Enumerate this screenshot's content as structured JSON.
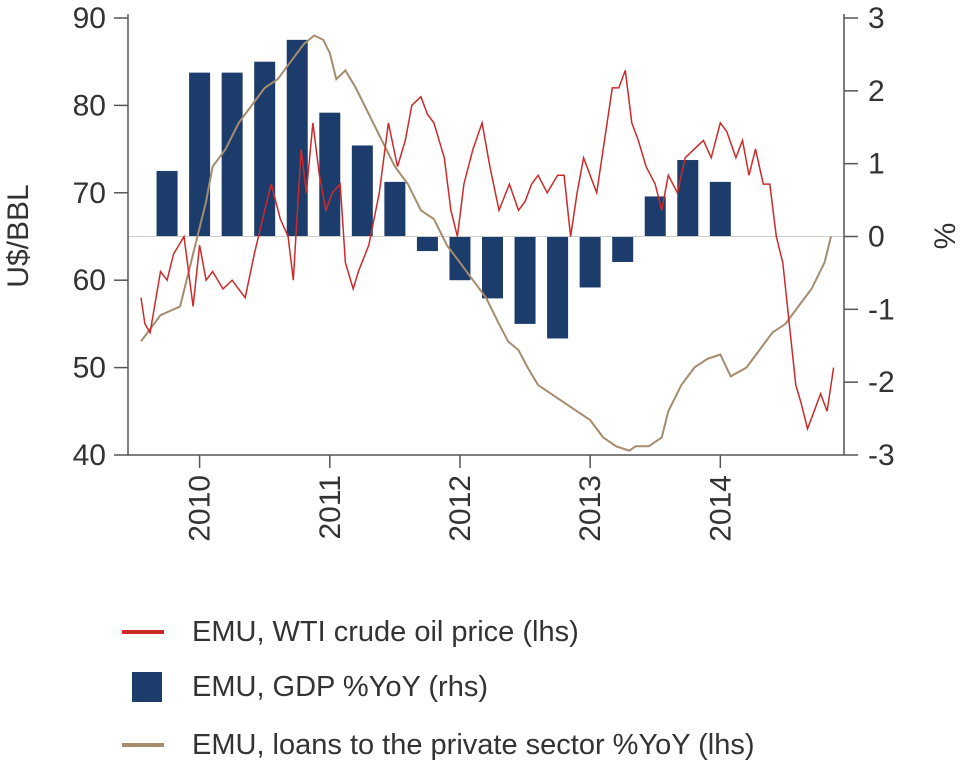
{
  "chart_data": {
    "type": "combo",
    "left_axis": {
      "label": "U$/BBL",
      "min": 40,
      "max": 90,
      "ticks": [
        40,
        50,
        60,
        70,
        80,
        90
      ]
    },
    "right_axis": {
      "label": "%",
      "min": -3,
      "max": 3,
      "ticks": [
        3,
        2,
        1,
        0,
        -1,
        -2,
        -3
      ]
    },
    "x_ticks": [
      "2010",
      "2011",
      "2012",
      "2013",
      "2014"
    ],
    "colors": {
      "oil": "#cc2a2a",
      "gdp": "#1c3d6b",
      "loans": "#a68c6e"
    },
    "series": [
      {
        "name": "EMU, WTI crude oil price (lhs)",
        "axis": "left",
        "style": "line",
        "x": [
          2009.55,
          2009.58,
          2009.62,
          2009.7,
          2009.75,
          2009.8,
          2009.88,
          2009.95,
          2010.0,
          2010.05,
          2010.1,
          2010.18,
          2010.25,
          2010.35,
          2010.42,
          2010.5,
          2010.55,
          2010.62,
          2010.68,
          2010.72,
          2010.78,
          2010.82,
          2010.87,
          2010.92,
          2010.97,
          2011.02,
          2011.08,
          2011.12,
          2011.18,
          2011.22,
          2011.3,
          2011.38,
          2011.45,
          2011.52,
          2011.58,
          2011.63,
          2011.7,
          2011.75,
          2011.8,
          2011.88,
          2011.93,
          2011.98,
          2012.03,
          2012.1,
          2012.17,
          2012.23,
          2012.3,
          2012.38,
          2012.45,
          2012.5,
          2012.55,
          2012.6,
          2012.67,
          2012.75,
          2012.8,
          2012.85,
          2012.9,
          2012.95,
          2013.0,
          2013.05,
          2013.1,
          2013.17,
          2013.22,
          2013.27,
          2013.32,
          2013.37,
          2013.43,
          2013.5,
          2013.55,
          2013.6,
          2013.67,
          2013.73,
          2013.8,
          2013.87,
          2013.93,
          2014.0,
          2014.05,
          2014.12,
          2014.17,
          2014.22,
          2014.27,
          2014.33,
          2014.38,
          2014.43,
          2014.48,
          2014.53,
          2014.58,
          2014.62,
          2014.67,
          2014.72,
          2014.77,
          2014.82,
          2014.87
        ],
        "values": [
          58,
          55,
          54,
          61,
          60,
          63,
          65,
          57,
          64,
          60,
          61,
          59,
          60,
          58,
          63,
          68,
          71,
          67,
          65,
          60,
          75,
          70,
          78,
          72,
          68,
          70,
          71,
          62,
          59,
          61,
          64,
          70,
          78,
          73,
          76,
          80,
          81,
          79,
          78,
          74,
          68,
          65,
          71,
          75,
          78,
          73,
          68,
          71,
          68,
          69,
          71,
          72,
          70,
          72,
          72,
          65,
          70,
          74,
          72,
          70,
          75,
          82,
          82,
          84,
          78,
          76,
          73,
          71,
          68,
          72,
          70,
          74,
          75,
          76,
          74,
          78,
          77,
          74,
          76,
          72,
          75,
          71,
          71,
          65,
          62,
          55,
          48,
          46,
          43,
          45,
          47,
          45,
          50
        ]
      },
      {
        "name": "EMU, GDP %YoY (rhs)",
        "axis": "right",
        "style": "bar",
        "x": [
          2009.75,
          2010.0,
          2010.25,
          2010.5,
          2010.75,
          2011.0,
          2011.25,
          2011.5,
          2011.75,
          2012.0,
          2012.25,
          2012.5,
          2012.75,
          2013.0,
          2013.25,
          2013.5,
          2013.75,
          2014.0
        ],
        "values": [
          0.9,
          2.25,
          2.25,
          2.4,
          2.7,
          1.7,
          1.25,
          0.75,
          -0.2,
          -0.6,
          -0.85,
          -1.2,
          -1.4,
          -0.7,
          -0.35,
          0.55,
          1.05,
          0.75
        ]
      },
      {
        "name": "EMU, loans to the private sector %YoY (lhs)",
        "axis": "left",
        "style": "line",
        "x": [
          2009.55,
          2009.7,
          2009.85,
          2009.95,
          2010.05,
          2010.1,
          2010.2,
          2010.3,
          2010.4,
          2010.5,
          2010.6,
          2010.7,
          2010.8,
          2010.88,
          2010.95,
          2011.0,
          2011.05,
          2011.12,
          2011.2,
          2011.3,
          2011.4,
          2011.5,
          2011.6,
          2011.7,
          2011.8,
          2011.9,
          2012.0,
          2012.1,
          2012.2,
          2012.3,
          2012.37,
          2012.45,
          2012.52,
          2012.6,
          2012.7,
          2012.8,
          2012.9,
          2013.0,
          2013.1,
          2013.2,
          2013.3,
          2013.35,
          2013.45,
          2013.5,
          2013.55,
          2013.6,
          2013.7,
          2013.8,
          2013.9,
          2014.0,
          2014.08,
          2014.2,
          2014.3,
          2014.4,
          2014.5,
          2014.6,
          2014.7,
          2014.8,
          2014.85
        ],
        "values": [
          53,
          56,
          57,
          63,
          69,
          73,
          75,
          78,
          80,
          82,
          83,
          85,
          87,
          88,
          87.5,
          86,
          83,
          84,
          82,
          79,
          76,
          73,
          71,
          68,
          67,
          64,
          62,
          60,
          58,
          55,
          53,
          52,
          50,
          48,
          47,
          46,
          45,
          44,
          42,
          41,
          40.5,
          41,
          41,
          41.5,
          42,
          45,
          48,
          50,
          51,
          51.5,
          49,
          50,
          52,
          54,
          55,
          57,
          59,
          62,
          65
        ]
      }
    ]
  }
}
